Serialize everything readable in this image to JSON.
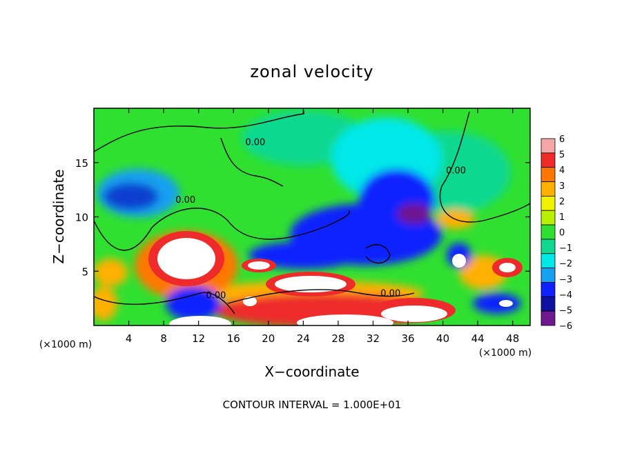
{
  "chart_data": {
    "type": "heatmap",
    "title": "zonal velocity",
    "xlabel": "X−coordinate",
    "ylabel": "Z−coordinate",
    "x_unit_left": "(×1000 m)",
    "x_unit_right": "(×1000 m)",
    "xlim": [
      0,
      50
    ],
    "ylim": [
      0,
      20
    ],
    "x_ticks": [
      4,
      8,
      12,
      16,
      20,
      24,
      28,
      32,
      36,
      40,
      44,
      48
    ],
    "y_ticks": [
      5,
      10,
      15
    ],
    "colorbar": {
      "levels": [
        6,
        5,
        4,
        3,
        2,
        1,
        0,
        -1,
        -2,
        -3,
        -4,
        -5,
        -6
      ],
      "labels": [
        "6",
        "5",
        "4",
        "3",
        "2",
        "1",
        "0",
        "−1",
        "−2",
        "−3",
        "−4",
        "−5",
        "−6"
      ],
      "colors": [
        "#f4a6a6",
        "#ee2a2a",
        "#ff7700",
        "#ffb000",
        "#f2f200",
        "#b8f000",
        "#30e030",
        "#10d890",
        "#00e8e8",
        "#18a0f0",
        "#1020ff",
        "#1010a0",
        "#701890"
      ]
    },
    "contour_labels": [
      {
        "text": "0.00",
        "x": 18.5,
        "z": 16.6
      },
      {
        "text": "0.00",
        "x": 10.5,
        "z": 11.3
      },
      {
        "text": "0.00",
        "x": 14.0,
        "z": 2.5
      },
      {
        "text": "0.00",
        "x": 34.0,
        "z": 2.7
      },
      {
        "text": "0.00",
        "x": 41.5,
        "z": 14.0
      }
    ],
    "footer": "CONTOUR INTERVAL = 1.000E+01"
  }
}
